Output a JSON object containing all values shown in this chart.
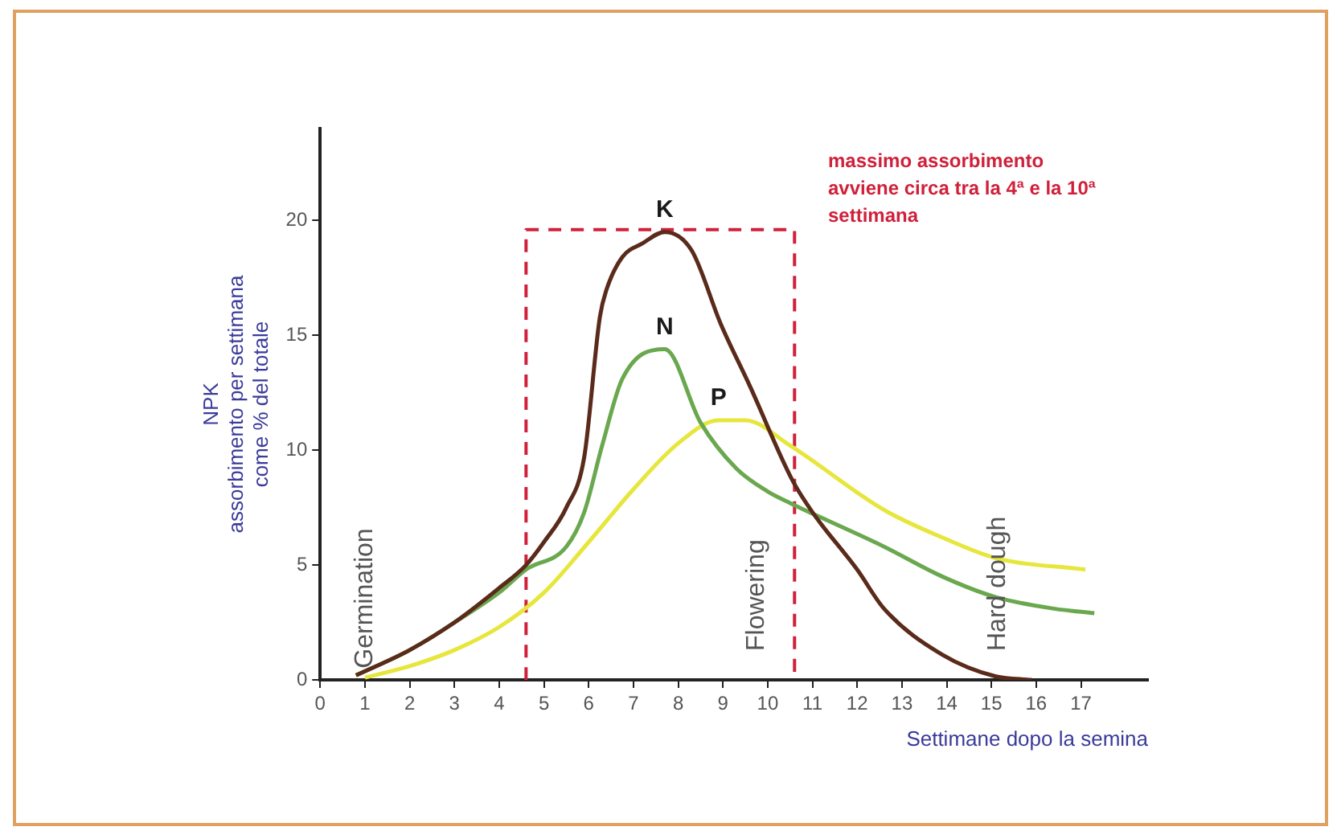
{
  "chart_data": {
    "type": "line",
    "xlabel": "Settimane dopo la semina",
    "ylabel": "NPK\nassorbimento per settimana\ncome % del totale",
    "xlim": [
      0,
      18.5
    ],
    "xticks": [
      0,
      1,
      2,
      3,
      4,
      5,
      6,
      7,
      8,
      9,
      10,
      11,
      12,
      13,
      14,
      15,
      16,
      17
    ],
    "ylim": [
      0,
      24
    ],
    "yticks": [
      0,
      5,
      10,
      15,
      20
    ],
    "grid": false,
    "legend": false,
    "marker": "none",
    "series": [
      {
        "name": "K",
        "color": "#5a2a1a",
        "x": [
          0.8,
          2,
          3,
          4,
          4.6,
          5,
          5.5,
          5.9,
          6.25,
          6.4,
          6.75,
          7.2,
          7.7,
          8.3,
          8.95,
          9.6,
          10.55,
          11,
          12,
          12.6,
          13.9,
          15.1,
          15.9
        ],
        "values": [
          0.2,
          1.3,
          2.5,
          4,
          5,
          6,
          7.5,
          9.7,
          15.8,
          17,
          18.4,
          19,
          19.5,
          18.7,
          15.5,
          12.8,
          8.7,
          7.3,
          4.8,
          3.1,
          1.1,
          0.15,
          0
        ]
      },
      {
        "name": "N",
        "color": "#6aa84f",
        "x": [
          0.8,
          2,
          3,
          4,
          4.6,
          5.5,
          5.9,
          6.3,
          6.75,
          7.7,
          8.5,
          9.3,
          10,
          10.5,
          12.6,
          13.9,
          15.1,
          16.4,
          17.3
        ],
        "values": [
          0.2,
          1.3,
          2.5,
          3.8,
          4.8,
          5.8,
          7.3,
          10.2,
          13.1,
          14.4,
          11.2,
          9.2,
          8.2,
          7.7,
          5.8,
          4.5,
          3.6,
          3.1,
          2.9
        ]
      },
      {
        "name": "P",
        "color": "#e6e63c",
        "x": [
          1,
          2,
          3,
          4,
          5,
          6,
          7,
          8,
          8.9,
          9.5,
          10.5,
          12.6,
          13.9,
          15.1,
          17.1
        ],
        "values": [
          0.1,
          0.6,
          1.3,
          2.3,
          3.8,
          6,
          8.3,
          10.3,
          11.3,
          11.3,
          10.2,
          7.4,
          6.2,
          5.3,
          4.8
        ]
      },
      {
        "type": "line",
        "color": "#d0203a",
        "line_style": "dashed",
        "x": [
          4.6,
          4.6,
          10.6,
          10.6
        ],
        "values": [
          0,
          19.6,
          19.6,
          0
        ]
      }
    ],
    "annotations": [
      "massimo assorbimento avviene circa tra la 4ª e la 10ª settimana",
      {
        "text": "Germination",
        "x": 1,
        "y": 0.5
      },
      "Flowering",
      "Hard dough"
    ]
  }
}
